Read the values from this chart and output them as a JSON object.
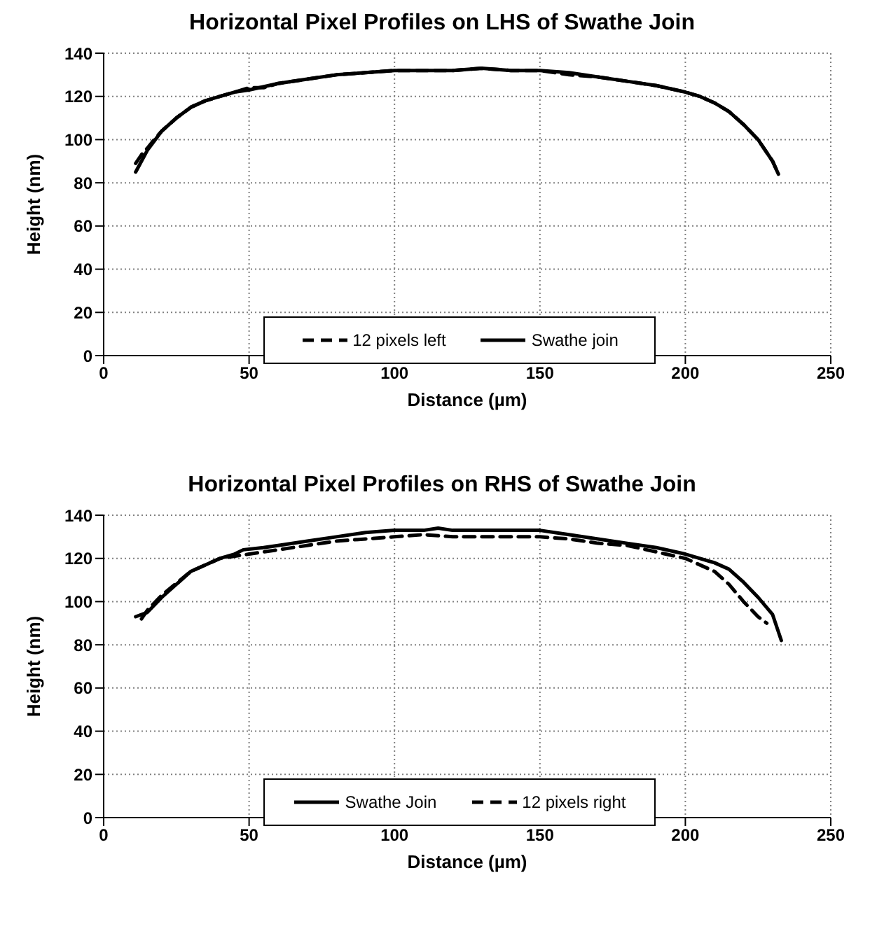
{
  "chart_data": [
    {
      "type": "line",
      "title": "Horizontal Pixel Profiles on LHS of Swathe Join",
      "xlabel": "Distance (µm)",
      "ylabel": "Height (nm)",
      "xlim": [
        0,
        250
      ],
      "xticks": [
        0,
        50,
        100,
        150,
        200,
        250
      ],
      "ylim": [
        0,
        140
      ],
      "yticks": [
        0,
        20,
        40,
        60,
        80,
        100,
        120,
        140
      ],
      "grid": true,
      "legend": "bottom",
      "marker": "none",
      "series": [
        {
          "name": "12 pixels left",
          "color": "#000000",
          "line_style": "dashed",
          "x": [
            11,
            13,
            15,
            18,
            20,
            25,
            30,
            35,
            40,
            45,
            50,
            55,
            60,
            70,
            80,
            90,
            100,
            110,
            120,
            130,
            140,
            150,
            160,
            170,
            180,
            190,
            200,
            205,
            210,
            215,
            220,
            225,
            230,
            232
          ],
          "values": [
            89,
            93,
            96,
            101,
            104,
            110,
            115,
            118,
            120,
            122,
            124,
            124,
            126,
            128,
            130,
            131,
            132,
            132,
            132,
            133,
            132,
            132,
            130,
            129,
            127,
            125,
            122,
            120,
            117,
            113,
            107,
            100,
            90,
            84
          ]
        },
        {
          "name": "Swathe join",
          "color": "#000000",
          "line_style": "solid",
          "x": [
            11,
            15,
            20,
            25,
            30,
            35,
            40,
            45,
            50,
            60,
            70,
            80,
            90,
            100,
            110,
            120,
            130,
            140,
            150,
            160,
            170,
            180,
            190,
            200,
            205,
            210,
            215,
            220,
            225,
            230,
            232
          ],
          "values": [
            85,
            95,
            104,
            110,
            115,
            118,
            120,
            122,
            123,
            126,
            128,
            130,
            131,
            132,
            132,
            132,
            133,
            132,
            132,
            131,
            129,
            127,
            125,
            122,
            120,
            117,
            113,
            107,
            100,
            90,
            84
          ]
        }
      ]
    },
    {
      "type": "line",
      "title": "Horizontal Pixel Profiles on RHS of Swathe Join",
      "xlabel": "Distance (µm)",
      "ylabel": "Height (nm)",
      "xlim": [
        0,
        250
      ],
      "xticks": [
        0,
        50,
        100,
        150,
        200,
        250
      ],
      "ylim": [
        0,
        140
      ],
      "yticks": [
        0,
        20,
        40,
        60,
        80,
        100,
        120,
        140
      ],
      "grid": true,
      "legend": "bottom",
      "marker": "none",
      "series": [
        {
          "name": "Swathe Join",
          "color": "#000000",
          "line_style": "solid",
          "x": [
            11,
            15,
            20,
            25,
            30,
            35,
            40,
            45,
            48,
            55,
            60,
            70,
            80,
            90,
            100,
            110,
            115,
            120,
            130,
            140,
            150,
            160,
            170,
            180,
            190,
            200,
            210,
            215,
            220,
            225,
            230,
            233
          ],
          "values": [
            93,
            95,
            102,
            108,
            114,
            117,
            120,
            122,
            124,
            125,
            126,
            128,
            130,
            132,
            133,
            133,
            134,
            133,
            133,
            133,
            133,
            131,
            129,
            127,
            125,
            122,
            118,
            115,
            109,
            102,
            94,
            82
          ]
        },
        {
          "name": "12 pixels right",
          "color": "#000000",
          "line_style": "dashed",
          "x": [
            13,
            15,
            20,
            30,
            40,
            50,
            60,
            70,
            80,
            90,
            100,
            110,
            120,
            130,
            140,
            150,
            160,
            170,
            180,
            190,
            200,
            210,
            215,
            220,
            225,
            228
          ],
          "values": [
            92,
            96,
            103,
            114,
            120,
            122,
            124,
            126,
            128,
            129,
            130,
            131,
            130,
            130,
            130,
            130,
            129,
            127,
            126,
            123,
            120,
            114,
            108,
            100,
            93,
            90
          ]
        }
      ]
    }
  ]
}
